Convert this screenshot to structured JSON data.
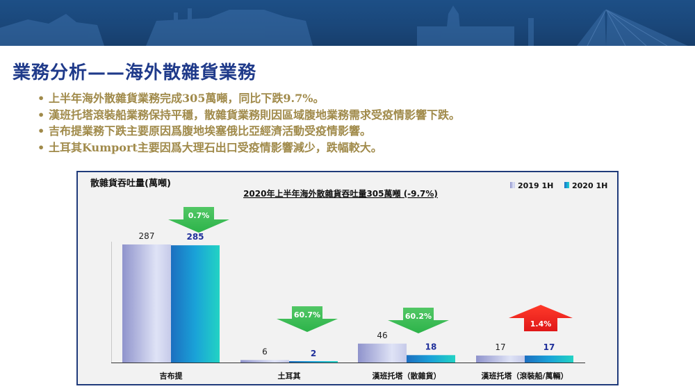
{
  "page": {
    "title": "業務分析——海外散雜貨業務",
    "bullets": [
      "上半年海外散雜貨業務完成305萬噸，同比下跌9.7%。",
      "漢班托塔滾裝船業務保持平穩，散雜貨業務則因區域腹地業務需求受疫情影響下跌。",
      "吉布提業務下跌主要原因爲腹地埃塞俄比亞經濟活動受疫情影響。",
      "土耳其Kumport主要因爲大理石出口受疫情影響減少，跌幅較大。"
    ],
    "bullet_marker": "•"
  },
  "colors": {
    "banner": "#1a477a",
    "title": "#1f3a8a",
    "bullet_text": "#a08a4a",
    "series_2019": "#b8bde6",
    "series_2020": "#1fa9d6",
    "label_2020": "#1f2f9a",
    "arrow_down": "#2db34a",
    "arrow_up": "#e01818"
  },
  "chart_data": {
    "type": "bar",
    "title": "2020年上半年海外散雜貨吞吐量305萬噸 (-9.7%)",
    "ylabel": "散雜貨吞吐量(萬噸)",
    "xlabel": "",
    "categories": [
      "吉布提",
      "土耳其",
      "漢班托塔（散雜貨）",
      "漢班托塔（滾裝船/萬輛）"
    ],
    "series": [
      {
        "name": "2019 1H",
        "values": [
          287,
          6,
          46,
          17
        ]
      },
      {
        "name": "2020 1H",
        "values": [
          285,
          2,
          18,
          17
        ]
      }
    ],
    "changes": [
      {
        "label": "0.7%",
        "direction": "down"
      },
      {
        "label": "60.7%",
        "direction": "down"
      },
      {
        "label": "60.2%",
        "direction": "down"
      },
      {
        "label": "1.4%",
        "direction": "up"
      }
    ],
    "ylim": [
      0,
      287
    ],
    "grid": false,
    "legend": "top-right"
  }
}
